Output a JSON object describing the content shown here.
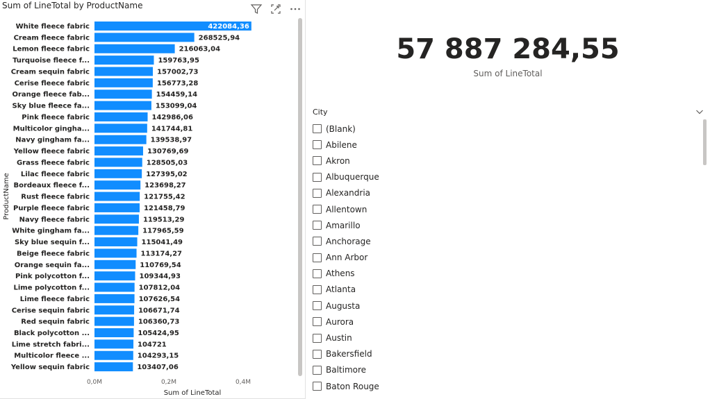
{
  "bar_chart": {
    "title": "Sum of LineTotal by ProductName",
    "icons": [
      "filter-icon",
      "focus-mode-icon",
      "more-options-icon"
    ],
    "bar_color": "#118DFF",
    "highlight_color": "#118DFF"
  },
  "chart_data": {
    "type": "bar",
    "orientation": "horizontal",
    "title": "Sum of LineTotal by ProductName",
    "xlabel": "Sum of LineTotal",
    "ylabel": "ProductName",
    "xlim": [
      0,
      400000
    ],
    "x_ticks": [
      "0,0M",
      "0,2M",
      "0,4M"
    ],
    "categories": [
      "White fleece fabric",
      "Cream fleece fabric",
      "Lemon fleece fabric",
      "Turquoise fleece f...",
      "Cream sequin fabric",
      "Cerise fleece fabric",
      "Orange fleece fab...",
      "Sky blue fleece fa...",
      "Pink fleece fabric",
      "Multicolor gingha...",
      "Navy gingham fa...",
      "Yellow fleece fabric",
      "Grass fleece fabric",
      "Lilac fleece fabric",
      "Bordeaux fleece f...",
      "Rust fleece fabric",
      "Purple fleece fabric",
      "Navy fleece fabric",
      "White gingham fa...",
      "Sky blue sequin f...",
      "Beige fleece fabric",
      "Orange sequin fa...",
      "Pink polycotton f...",
      "Lime polycotton f...",
      "Lime fleece fabric",
      "Cerise sequin fabric",
      "Red sequin fabric",
      "Black polycotton ...",
      "Lime stretch fabri...",
      "Multicolor fleece ...",
      "Yellow sequin fabric"
    ],
    "values": [
      422084.36,
      268525.94,
      216063.04,
      159763.95,
      157002.73,
      156773.28,
      154459.14,
      153099.04,
      142986.06,
      141744.81,
      139538.97,
      130769.69,
      128505.03,
      127395.02,
      123698.27,
      121755.42,
      121458.79,
      119513.29,
      117965.59,
      115041.49,
      113174.27,
      110769.54,
      109344.93,
      107812.04,
      107626.54,
      106671.74,
      106360.73,
      105424.95,
      104721,
      104293.15,
      103407.06
    ],
    "value_labels": [
      "422084,36",
      "268525,94",
      "216063,04",
      "159763,95",
      "157002,73",
      "156773,28",
      "154459,14",
      "153099,04",
      "142986,06",
      "141744,81",
      "139538,97",
      "130769,69",
      "128505,03",
      "127395,02",
      "123698,27",
      "121755,42",
      "121458,79",
      "119513,29",
      "117965,59",
      "115041,49",
      "113174,27",
      "110769,54",
      "109344,93",
      "107812,04",
      "107626,54",
      "106671,74",
      "106360,73",
      "105424,95",
      "104721",
      "104293,15",
      "103407,06"
    ],
    "grid": false,
    "legend": "none"
  },
  "card": {
    "value": "57 887 284,55",
    "label": "Sum of LineTotal"
  },
  "slicer": {
    "header": "City",
    "chevron_icon": "chevron-down-icon",
    "items": [
      "(Blank)",
      "Abilene",
      "Akron",
      "Albuquerque",
      "Alexandria",
      "Allentown",
      "Amarillo",
      "Anchorage",
      "Ann Arbor",
      "Athens",
      "Atlanta",
      "Augusta",
      "Aurora",
      "Austin",
      "Bakersfield",
      "Baltimore",
      "Baton Rouge"
    ]
  }
}
